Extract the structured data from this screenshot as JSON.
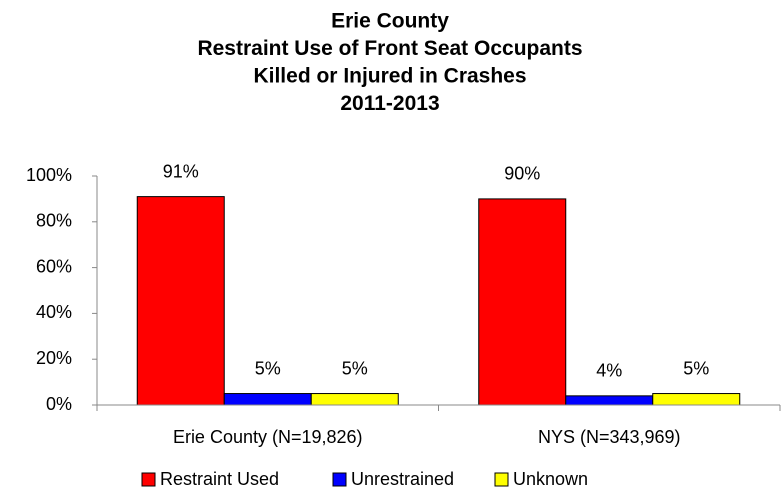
{
  "chart_data": {
    "type": "bar",
    "title": [
      "Erie County",
      "Restraint Use of Front Seat Occupants",
      "Killed or Injured in Crashes",
      "2011-2013"
    ],
    "categories": [
      "Erie County (N=19,826)",
      "NYS (N=343,969)"
    ],
    "series": [
      {
        "name": "Restraint Used",
        "color": "#ff0000",
        "values": [
          91,
          90
        ],
        "value_labels": [
          "91%",
          "90%"
        ]
      },
      {
        "name": "Unrestrained",
        "color": "#0000ff",
        "values": [
          5,
          4
        ],
        "value_labels": [
          "5%",
          "4%"
        ]
      },
      {
        "name": "Unknown",
        "color": "#ffff00",
        "values": [
          5,
          5
        ],
        "value_labels": [
          "5%",
          "5%"
        ]
      }
    ],
    "ylim": [
      0,
      100
    ],
    "yticks": [
      {
        "value": 0,
        "label": "0%"
      },
      {
        "value": 20,
        "label": "20%"
      },
      {
        "value": 40,
        "label": "40%"
      },
      {
        "value": 60,
        "label": "60%"
      },
      {
        "value": 80,
        "label": "80%"
      },
      {
        "value": 100,
        "label": "100%"
      }
    ],
    "grid": false,
    "legend": "bottom"
  }
}
